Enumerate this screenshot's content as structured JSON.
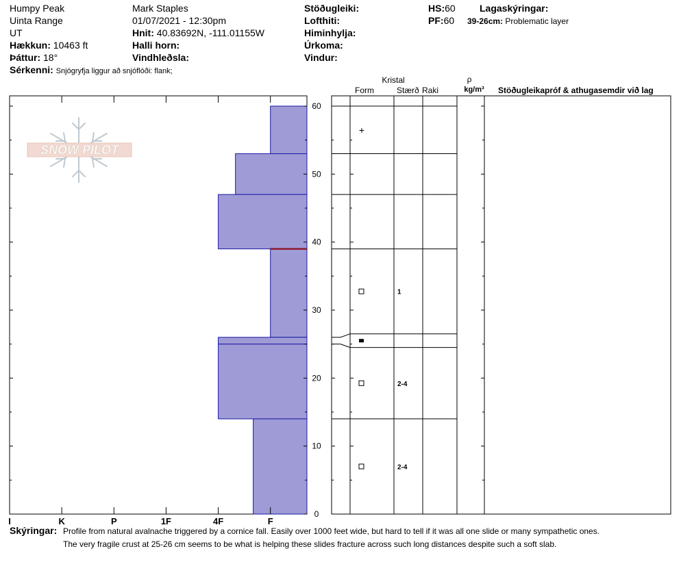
{
  "header": {
    "location": "Humpy Peak",
    "range": "Uinta Range",
    "state": "UT",
    "elevation_label": "Hækkun:",
    "elevation_value": "10463 ft",
    "aspect_label": "Þáttur:",
    "aspect_value": "18°",
    "observer": "Mark Staples",
    "datetime": "01/07/2021 - 12:30pm",
    "coords_label": "Hnit:",
    "coords_value": "40.83692N, -111.01155W",
    "slope_label": "Halli horn:",
    "wind_loading_label": "Vindhleðsla:",
    "stability_label": "Stöðugleiki:",
    "air_temp_label": "Lofthiti:",
    "sky_label": "Himinhylja:",
    "precip_label": "Úrkoma:",
    "wind_label": "Vindur:",
    "hs_label": "HS:",
    "hs_value": "60",
    "pf_label": "PF:",
    "pf_value": "60",
    "layer_notes_label": "Lagaskýringar:",
    "layer_note_range": "39-26cm:",
    "layer_note_text": "Problematic layer",
    "features_label": "Sérkenni:",
    "features_value": "Snjógryfja liggur að snjóflóði: flank;"
  },
  "columns": {
    "crystal": "Kristal",
    "form": "Form",
    "size": "Stærð",
    "moisture": "Raki",
    "rho": "ρ",
    "density_unit": "kg/m³",
    "tests": "Stöðugleikapróf & athugasemdir við lag"
  },
  "comments": {
    "label": "Skýringar:",
    "line1": "Profile from natural avalnache triggered by a cornice fall. Easily over 1000 feet wide, but hard to tell if it was all one slide or many sympathetic ones.",
    "line2": "The very fragile crust at 25-26 cm seems to be what is helping these slides fracture across such long distances despite such a soft slab."
  },
  "watermark": "SNOW PILOT",
  "chart_data": {
    "type": "bar",
    "orientation": "horizontal-step",
    "description_axis": "height (cm)",
    "ylim": [
      0,
      60
    ],
    "y_ticks": [
      0,
      10,
      20,
      30,
      40,
      50,
      60
    ],
    "hardness_ticks": [
      "I",
      "K",
      "P",
      "1F",
      "4F",
      "F"
    ],
    "hardness_scale_note": "hardness index: F=1 (fist), 4F=2, 1F=3, P=4, K=5, I=6",
    "layers": [
      {
        "top": 60,
        "bottom": 53,
        "hardness": "F",
        "hardness_index": 1
      },
      {
        "top": 53,
        "bottom": 47,
        "hardness": "F+",
        "hardness_index": 1.67
      },
      {
        "top": 47,
        "bottom": 39,
        "hardness": "4F",
        "hardness_index": 2
      },
      {
        "top": 39,
        "bottom": 26,
        "hardness": "F",
        "hardness_index": 1
      },
      {
        "top": 26,
        "bottom": 25,
        "hardness": "4F",
        "hardness_index": 2
      },
      {
        "top": 25,
        "bottom": 14,
        "hardness": "4F",
        "hardness_index": 2
      },
      {
        "top": 14,
        "bottom": 0,
        "hardness": "F+",
        "hardness_index": 1.33
      }
    ],
    "problem_interface_cm": 39,
    "grain_rows": [
      {
        "top": 60,
        "bottom": 53,
        "form_symbol": "+",
        "size": ""
      },
      {
        "top": 53,
        "bottom": 47,
        "form_symbol": "",
        "size": ""
      },
      {
        "top": 47,
        "bottom": 39,
        "form_symbol": "",
        "size": ""
      },
      {
        "top": 39,
        "bottom": 26.5,
        "form_symbol": "□",
        "size": "1"
      },
      {
        "top": 26.5,
        "bottom": 24.5,
        "form_symbol": "■",
        "size": ""
      },
      {
        "top": 24.5,
        "bottom": 14,
        "form_symbol": "□",
        "size": "2-4"
      },
      {
        "top": 14,
        "bottom": 0,
        "form_symbol": "□",
        "size": "2-4"
      }
    ],
    "colors": {
      "layer_fill": "#9e9bd6",
      "layer_stroke": "#1a1aa0",
      "problem_line": "#8b1a2a"
    }
  }
}
